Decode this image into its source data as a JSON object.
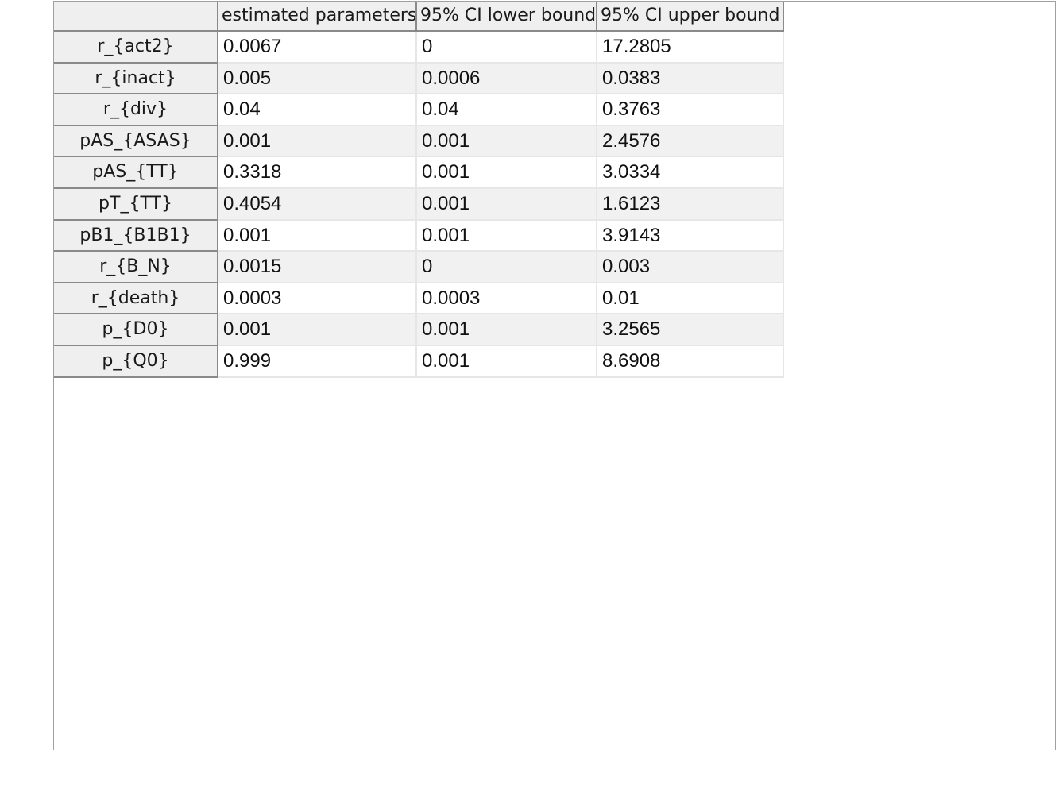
{
  "table": {
    "columns": [
      "estimated parameters",
      "95% CI lower bound",
      "95% CI upper bound"
    ],
    "rows": [
      {
        "name": "r_{act2}",
        "values": [
          "0.0067",
          "0",
          "17.2805"
        ]
      },
      {
        "name": "r_{inact}",
        "values": [
          "0.005",
          "0.0006",
          "0.0383"
        ]
      },
      {
        "name": "r_{div}",
        "values": [
          "0.04",
          "0.04",
          "0.3763"
        ]
      },
      {
        "name": "pAS_{ASAS}",
        "values": [
          "0.001",
          "0.001",
          "2.4576"
        ]
      },
      {
        "name": "pAS_{TT}",
        "values": [
          "0.3318",
          "0.001",
          "3.0334"
        ]
      },
      {
        "name": "pT_{TT}",
        "values": [
          "0.4054",
          "0.001",
          "1.6123"
        ]
      },
      {
        "name": "pB1_{B1B1}",
        "values": [
          "0.001",
          "0.001",
          "3.9143"
        ]
      },
      {
        "name": "r_{B_N}",
        "values": [
          "0.0015",
          "0",
          "0.003"
        ]
      },
      {
        "name": "r_{death}",
        "values": [
          "0.0003",
          "0.0003",
          "0.01"
        ]
      },
      {
        "name": "p_{D0}",
        "values": [
          "0.001",
          "0.001",
          "3.2565"
        ]
      },
      {
        "name": "p_{Q0}",
        "values": [
          "0.999",
          "0.001",
          "8.6908"
        ]
      }
    ]
  }
}
